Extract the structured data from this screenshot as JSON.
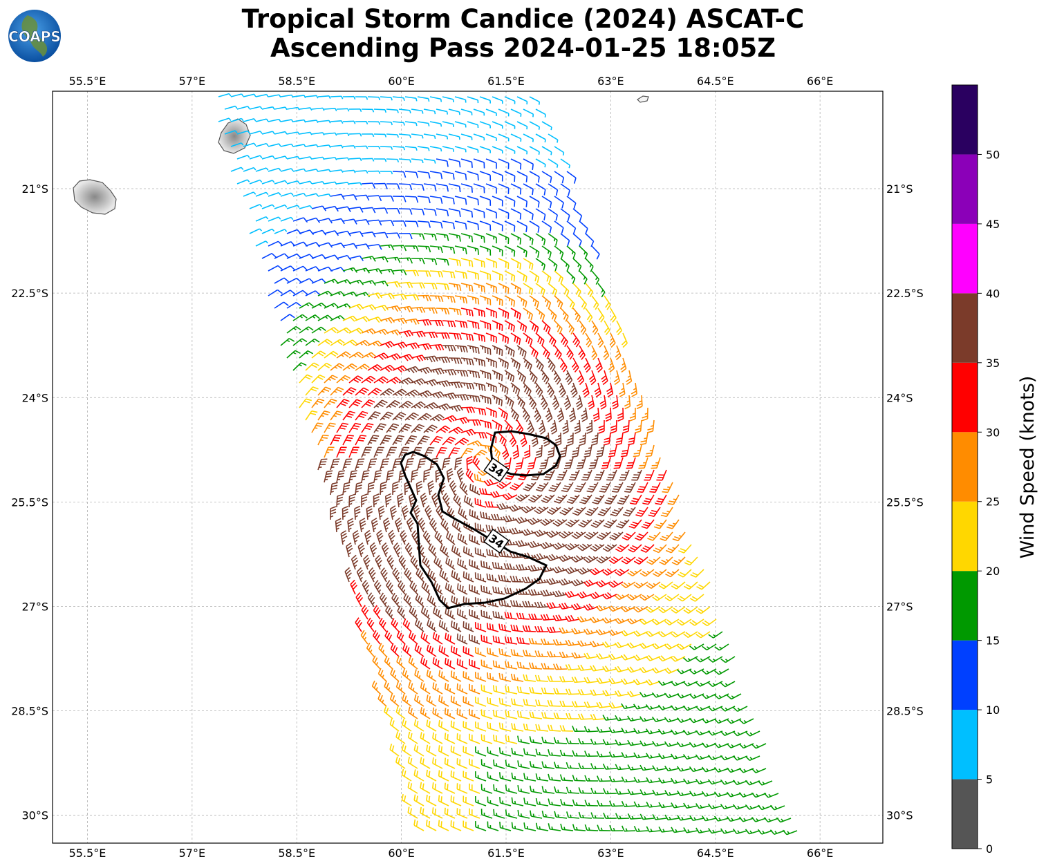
{
  "title": {
    "line1": "Tropical Storm Candice (2024) ASCAT-C",
    "line2": "Ascending Pass 2024-01-25 18:05Z"
  },
  "logo": {
    "text": "COAPS"
  },
  "map": {
    "lon_ticks": [
      "55.5°E",
      "57°E",
      "58.5°E",
      "60°E",
      "61.5°E",
      "63°E",
      "64.5°E",
      "66°E"
    ],
    "lat_ticks": [
      "21°S",
      "22.5°S",
      "24°S",
      "25.5°S",
      "27°S",
      "28.5°S",
      "30°S"
    ],
    "lon_range": [
      55.0,
      66.9
    ],
    "lat_range": [
      -19.6,
      -30.4
    ],
    "contour_label": "34",
    "contour_labels": [
      "34",
      "34"
    ]
  },
  "colorbar": {
    "label": "Wind Speed (knots)",
    "ticks": [
      "0",
      "5",
      "10",
      "15",
      "20",
      "25",
      "30",
      "35",
      "40",
      "45",
      "50"
    ],
    "colors": [
      "#555555",
      "#00bfff",
      "#0040ff",
      "#009900",
      "#ffd700",
      "#ff8c00",
      "#ff0000",
      "#7b3b2a",
      "#ff00ff",
      "#8b00b8",
      "#2a0060"
    ]
  }
}
